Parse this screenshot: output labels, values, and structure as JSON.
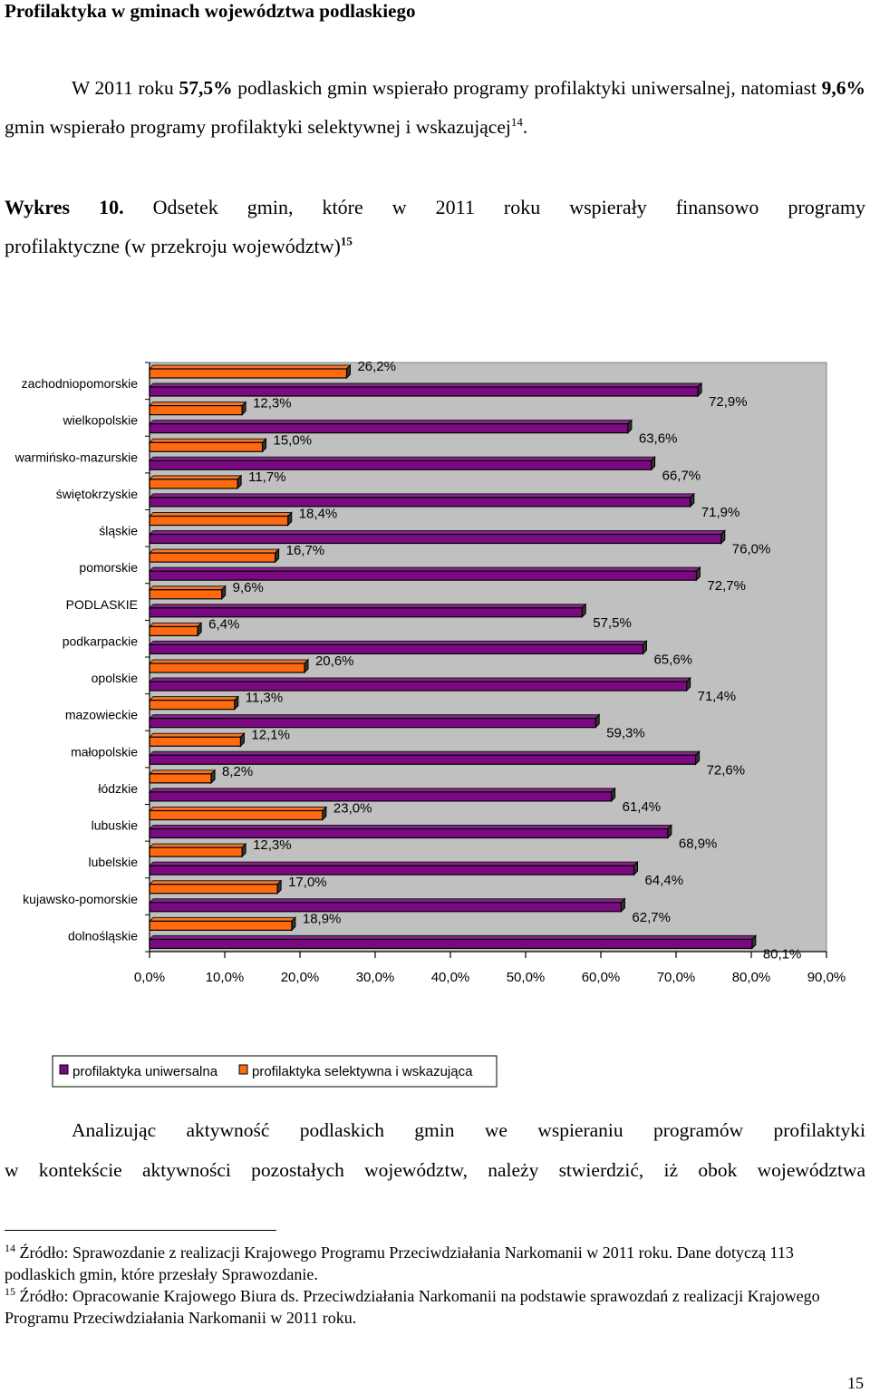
{
  "heading": "Profilaktyka w gminach województwa podlaskiego",
  "intro": {
    "part1": "W 2011 roku ",
    "bold1": "57,5%",
    "part2": " podlaskich gmin wspierało programy profilaktyki uniwersalnej, natomiast ",
    "bold2": "9,6%",
    "part3": " gmin wspierało programy profilaktyki selektywnej i wskazującej",
    "footnote_ref": "14",
    "part4": "."
  },
  "caption": {
    "label": "Wykres 10.",
    "line1": " Odsetek gmin, które w 2011 roku wspierały finansowo programy",
    "line2": "profilaktyczne (w przekroju województw)",
    "footnote_ref": "15"
  },
  "chart_data": {
    "type": "bar",
    "orientation": "horizontal",
    "categories": [
      "zachodniopomorskie",
      "wielkopolskie",
      "warmińsko-mazurskie",
      "świętokrzyskie",
      "śląskie",
      "pomorskie",
      "PODLASKIE",
      "podkarpackie",
      "opolskie",
      "mazowieckie",
      "małopolskie",
      "łódzkie",
      "lubuskie",
      "lubelskie",
      "kujawsko-pomorskie",
      "dolnośląskie"
    ],
    "series": [
      {
        "name": "profilaktyka uniwersalna",
        "color": "#7B0A82",
        "values": [
          72.9,
          63.6,
          66.7,
          71.9,
          76.0,
          72.7,
          57.5,
          65.6,
          71.4,
          59.3,
          72.6,
          61.4,
          68.9,
          64.4,
          62.7,
          80.1
        ],
        "labels": [
          "72,9%",
          "63,6%",
          "66,7%",
          "71,9%",
          "76,0%",
          "72,7%",
          "57,5%",
          "65,6%",
          "71,4%",
          "59,3%",
          "72,6%",
          "61,4%",
          "68,9%",
          "64,4%",
          "62,7%",
          "80,1%"
        ]
      },
      {
        "name": "profilaktyka selektywna i wskazująca",
        "color": "#FF6A10",
        "values": [
          26.2,
          12.3,
          15.0,
          11.7,
          18.4,
          16.7,
          9.6,
          6.4,
          20.6,
          11.3,
          12.1,
          8.2,
          23.0,
          12.3,
          17.0,
          18.9
        ],
        "labels": [
          "26,2%",
          "12,3%",
          "15,0%",
          "11,7%",
          "18,4%",
          "16,7%",
          "9,6%",
          "6,4%",
          "20,6%",
          "11,3%",
          "12,1%",
          "8,2%",
          "23,0%",
          "12,3%",
          "17,0%",
          "18,9%"
        ]
      }
    ],
    "xlim": [
      0,
      90
    ],
    "xticks": [
      "0,0%",
      "10,0%",
      "20,0%",
      "30,0%",
      "40,0%",
      "50,0%",
      "60,0%",
      "70,0%",
      "80,0%",
      "90,0%"
    ],
    "grid": false,
    "plot_background": "#C0C0C0",
    "legend_position": "bottom-left"
  },
  "analysis": {
    "line1": "Analizując aktywność podlaskich gmin we wspieraniu programów profilaktyki",
    "line2": "w kontekście aktywności pozostałych województw, należy stwierdzić, iż obok województwa"
  },
  "footnotes": [
    {
      "num": "14",
      "text": " Źródło: Sprawozdanie z realizacji Krajowego Programu Przeciwdziałania Narkomanii w 2011 roku. Dane dotyczą 113 podlaskich gmin, które przesłały Sprawozdanie."
    },
    {
      "num": "15",
      "text": " Źródło: Opracowanie Krajowego Biura ds. Przeciwdziałania Narkomanii na podstawie sprawozdań z realizacji Krajowego Programu Przeciwdziałania Narkomanii w 2011 roku."
    }
  ],
  "page_number": "15"
}
